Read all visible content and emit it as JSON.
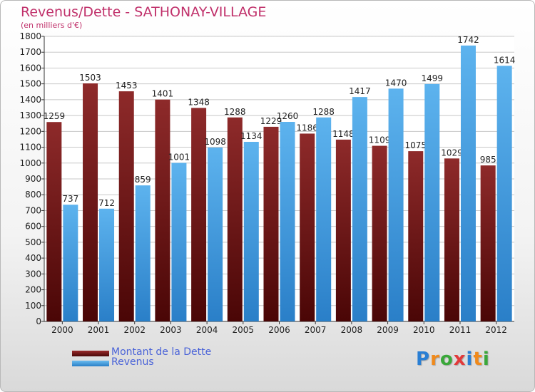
{
  "chart_data": {
    "type": "bar",
    "title": "Revenus/Dette - SATHONAY-VILLAGE",
    "subtitle": "(en milliers d'€)",
    "categories": [
      "2000",
      "2001",
      "2002",
      "2003",
      "2004",
      "2005",
      "2006",
      "2007",
      "2008",
      "2009",
      "2010",
      "2011",
      "2012"
    ],
    "series": [
      {
        "name": "Montant de la Dette",
        "color": "#7a1515",
        "values": [
          1259,
          1503,
          1453,
          1401,
          1348,
          1288,
          1229,
          1186,
          1148,
          1109,
          1075,
          1029,
          985
        ]
      },
      {
        "name": "Revenus",
        "color": "#3d9ae0",
        "values": [
          737,
          712,
          859,
          1001,
          1098,
          1134,
          1260,
          1288,
          1417,
          1470,
          1499,
          1742,
          1614
        ]
      }
    ],
    "ylim": [
      0,
      1800
    ],
    "yticks": [
      0,
      100,
      200,
      300,
      400,
      500,
      600,
      700,
      800,
      900,
      1000,
      1100,
      1200,
      1300,
      1400,
      1500,
      1600,
      1700,
      1800
    ],
    "grid": true,
    "legend_position": "bottom-left"
  },
  "logo": {
    "letters": [
      "P",
      "r",
      "o",
      "x",
      "i",
      "t",
      "i"
    ],
    "colors": [
      "#2a7fd4",
      "#f08a1c",
      "#3aa83a",
      "#e23a3a",
      "#2a7fd4",
      "#f08a1c",
      "#3aa83a"
    ]
  }
}
